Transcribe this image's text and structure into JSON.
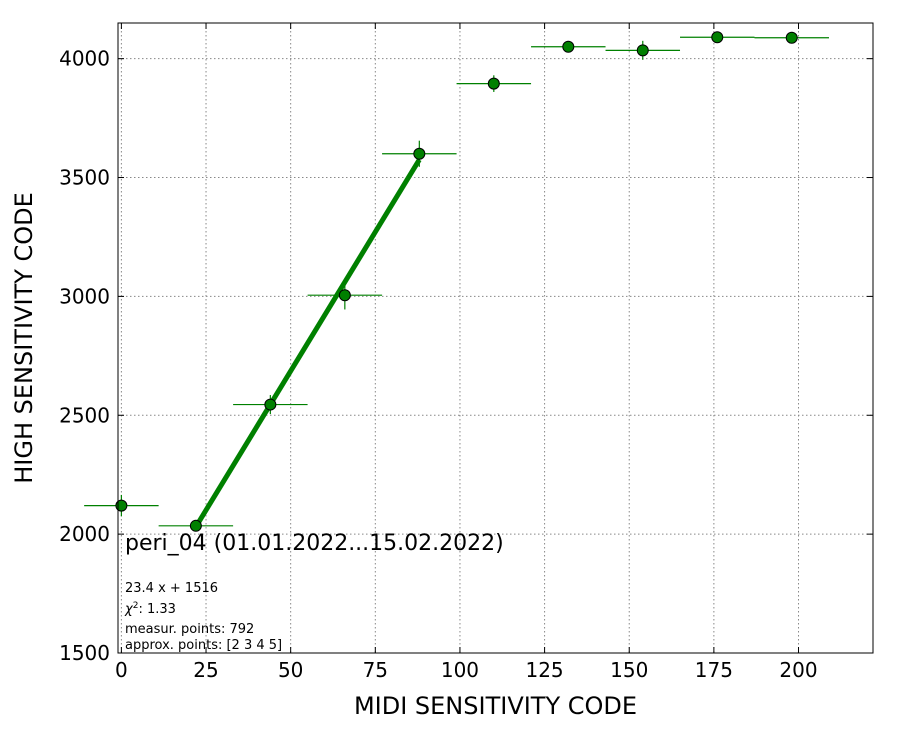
{
  "chart_data": {
    "type": "scatter",
    "xlabel": "MIDI SENSITIVITY CODE",
    "ylabel": "HIGH SENSITIVITY CODE",
    "xlim": [
      -1,
      222
    ],
    "ylim": [
      1500,
      4150
    ],
    "xticks": [
      0,
      25,
      50,
      75,
      100,
      125,
      150,
      175,
      200
    ],
    "yticks": [
      1500,
      2000,
      2500,
      3000,
      3500,
      4000
    ],
    "grid": true,
    "colors": {
      "points": "#008000",
      "fit": "#008000",
      "edge": "#000000",
      "errorbars": "#008000"
    },
    "points": {
      "x": [
        0,
        22,
        44,
        66,
        88,
        110,
        132,
        154,
        176,
        198
      ],
      "y": [
        2120,
        2035,
        2545,
        3005,
        3600,
        3895,
        4050,
        4035,
        4090,
        4088
      ],
      "xerr": [
        11,
        11,
        11,
        11,
        11,
        11,
        11,
        11,
        11,
        11
      ],
      "yerr": [
        45,
        20,
        40,
        60,
        55,
        35,
        15,
        40,
        20,
        15
      ]
    },
    "fit": {
      "slope": 23.4,
      "intercept": 1516,
      "x_range": [
        22,
        88
      ]
    },
    "annotations": {
      "title": "peri_04 (01.01.2022...15.02.2022)",
      "equation": "23.4 x + 1516",
      "chi2_value": "1.33",
      "measur": "measur. points: 792",
      "approx": "approx. points: [2 3 4 5]"
    }
  }
}
